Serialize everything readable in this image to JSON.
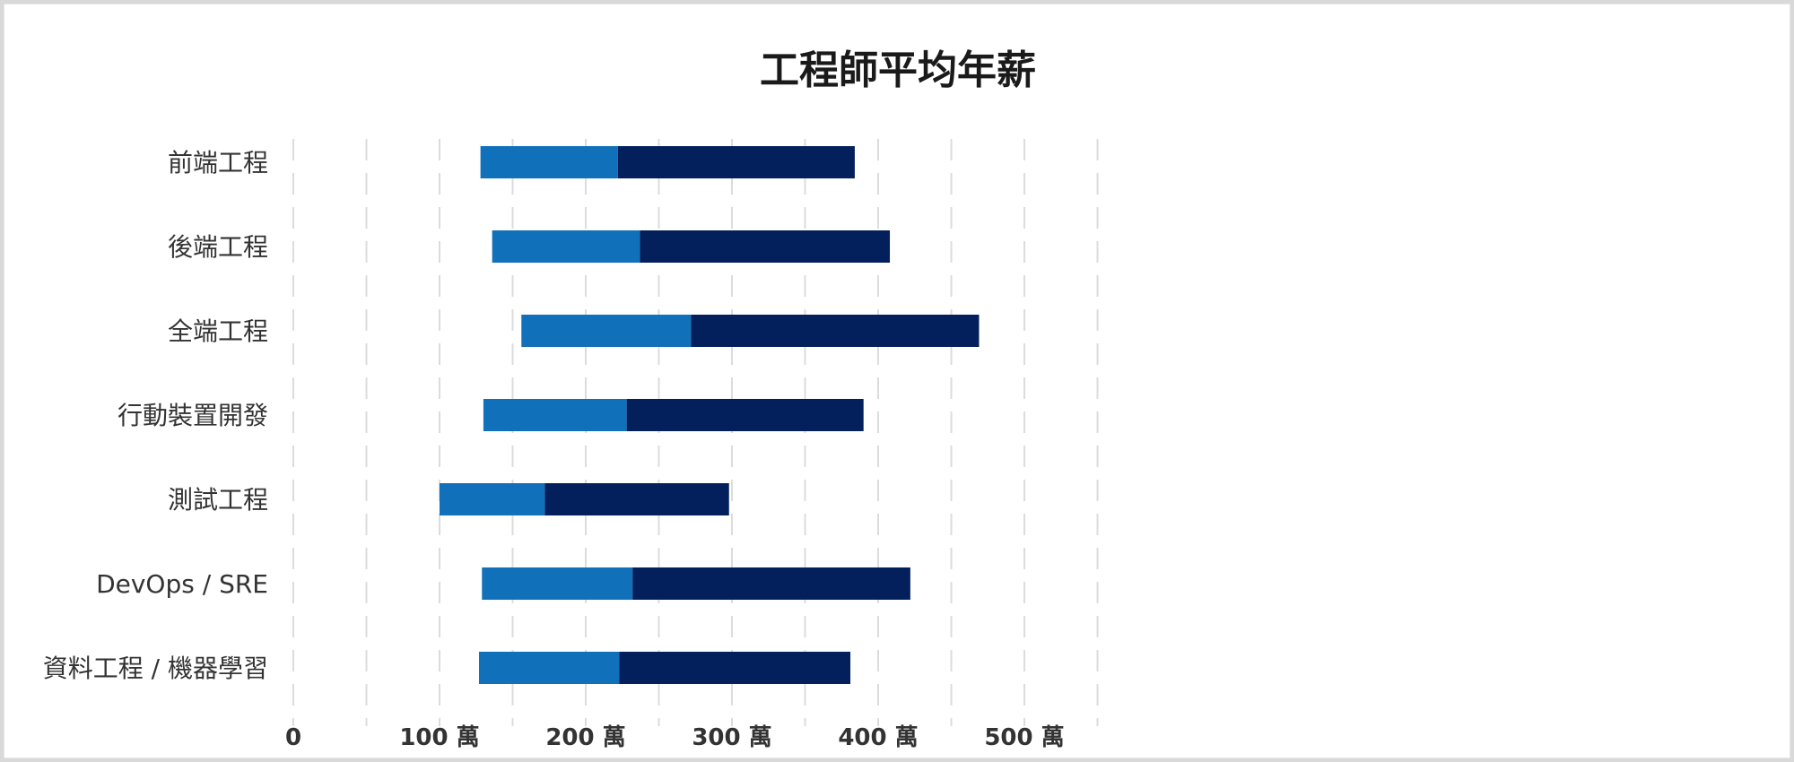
{
  "chart_data": {
    "type": "bar",
    "orientation": "horizontal",
    "stacked": true,
    "title": "工程師平均年薪",
    "categories": [
      "前端工程",
      "後端工程",
      "全端工程",
      "行動裝置開發",
      "測試工程",
      "DevOps / SRE",
      "資料工程 / 機器學習"
    ],
    "series": [
      {
        "role": "offset",
        "values": [
          128,
          136,
          156,
          130,
          100,
          129,
          127
        ],
        "color": "transparent"
      },
      {
        "role": "lower-range",
        "values": [
          94,
          101,
          116,
          98,
          72,
          103,
          96
        ],
        "color": "#1170ba"
      },
      {
        "role": "upper-range",
        "values": [
          162,
          171,
          197,
          162,
          126,
          190,
          158
        ],
        "color": "#03205c"
      }
    ],
    "xlim": [
      0,
      550
    ],
    "xticks": [
      0,
      100,
      200,
      300,
      400,
      500
    ],
    "xtick_labels": [
      "0",
      "100 萬",
      "200 萬",
      "300 萬",
      "400 萬",
      "500 萬"
    ],
    "grid": true,
    "legend": "none"
  }
}
